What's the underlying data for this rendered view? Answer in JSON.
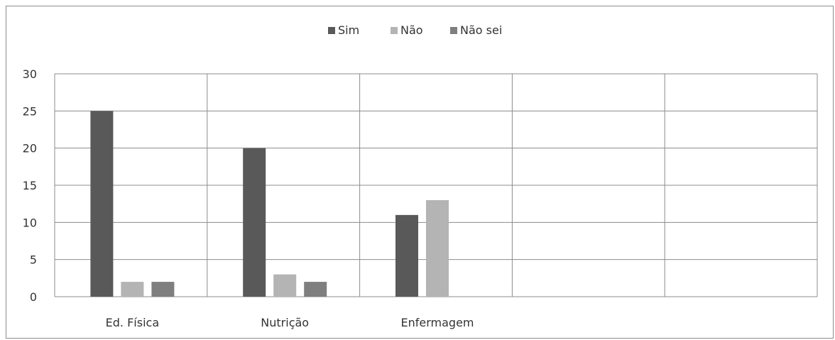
{
  "chart_data": {
    "type": "bar",
    "categories": [
      "Ed. Física",
      "Nutrição",
      "Enfermagem",
      "",
      ""
    ],
    "series": [
      {
        "name": "Sim",
        "color": "#595959",
        "values": [
          25,
          20,
          11,
          null,
          null
        ]
      },
      {
        "name": "Não",
        "color": "#b4b4b4",
        "values": [
          2,
          3,
          13,
          null,
          null
        ]
      },
      {
        "name": "Não sei",
        "color": "#7f7f7f",
        "values": [
          2,
          2,
          null,
          null,
          null
        ]
      }
    ],
    "ylim": [
      0,
      30
    ],
    "yticks": [
      0,
      5,
      10,
      15,
      20,
      25,
      30
    ],
    "grid": true,
    "legend_position": "top-center",
    "title": "",
    "xlabel": "",
    "ylabel": ""
  }
}
